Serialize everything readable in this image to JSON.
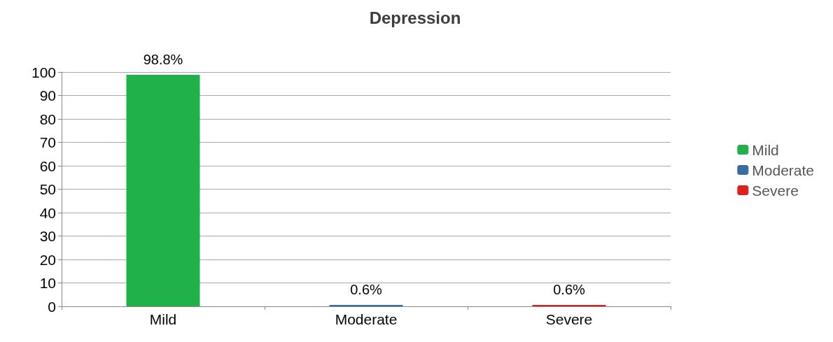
{
  "chart_data": {
    "type": "bar",
    "title": "Depression",
    "categories": [
      "Mild",
      "Moderate",
      "Severe"
    ],
    "series": [
      {
        "name": "Mild",
        "color": "#21b14b",
        "values": [
          98.8,
          null,
          null
        ],
        "value_labels": [
          "98.8%",
          null,
          null
        ]
      },
      {
        "name": "Moderate",
        "color": "#3b6ba5",
        "values": [
          null,
          0.6,
          null
        ],
        "value_labels": [
          null,
          "0.6%",
          null
        ]
      },
      {
        "name": "Severe",
        "color": "#e01f1f",
        "values": [
          null,
          null,
          0.6
        ],
        "value_labels": [
          null,
          null,
          "0.6%"
        ]
      }
    ],
    "ylim": [
      0,
      100
    ],
    "yticks": [
      0,
      10,
      20,
      30,
      40,
      50,
      60,
      70,
      80,
      90,
      100
    ],
    "grid": "y",
    "legend": "right"
  }
}
